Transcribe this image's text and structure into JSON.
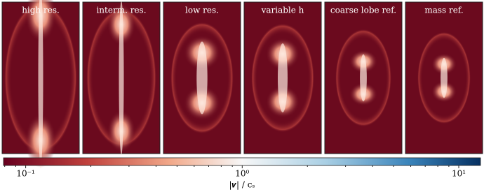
{
  "panels": [
    {
      "title": "high res."
    },
    {
      "title": "interm. res."
    },
    {
      "title": "low res."
    },
    {
      "title": "variable h"
    },
    {
      "title": "coarse lobe ref."
    },
    {
      "title": "mass ref."
    }
  ],
  "colorbar": {
    "label": "|𝒗| / cₛ",
    "log": true,
    "lim": [
      0.079,
      12.6
    ],
    "ticks": [
      {
        "value": 0.1,
        "label": "10⁻¹"
      },
      {
        "value": 1,
        "label": "10⁰"
      },
      {
        "value": 10,
        "label": "10¹"
      }
    ]
  }
}
